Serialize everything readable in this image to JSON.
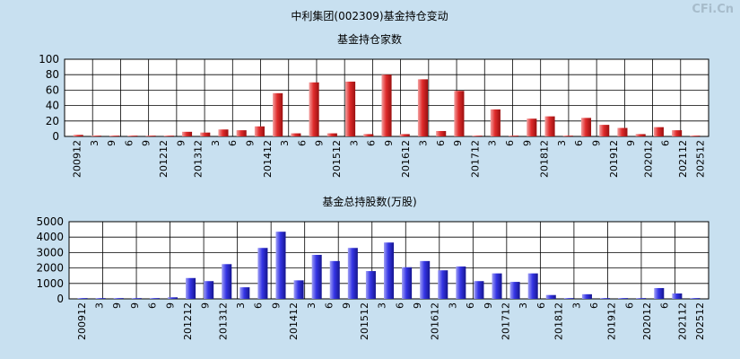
{
  "page_title": "中利集团(002309)基金持仓变动",
  "watermark": "CFi.Cn",
  "colors": {
    "bg": "#c8e0f0",
    "bar1": "#e03333",
    "bar2": "#3333dd",
    "grid": "#000000",
    "plot_bg": "#ffffff"
  },
  "chart_data": [
    {
      "type": "bar",
      "title": "基金持仓家数",
      "ylim": [
        0,
        100
      ],
      "yticks": [
        0,
        20,
        40,
        60,
        80,
        100
      ],
      "xtick_labels": [
        "200912",
        "3",
        "9",
        "6",
        "9",
        "201212",
        "9",
        "201312",
        "3",
        "6",
        "9",
        "201412",
        "3",
        "6",
        "9",
        "201512",
        "3",
        "6",
        "9",
        "201612",
        "3",
        "6",
        "9",
        "201712",
        "3",
        "6",
        "9",
        "201812",
        "3",
        "6",
        "9",
        "201912",
        "9",
        "202012",
        "6",
        "202112",
        "202512"
      ],
      "values": [
        2,
        1,
        1,
        1,
        1,
        1,
        6,
        5,
        9,
        8,
        13,
        56,
        4,
        70,
        4,
        71,
        3,
        80,
        3,
        74,
        7,
        59,
        1,
        35,
        1,
        23,
        26,
        1,
        24,
        15,
        11,
        3,
        12,
        8,
        1
      ]
    },
    {
      "type": "bar",
      "title": "基金总持股数(万股)",
      "ylim": [
        0,
        5000
      ],
      "yticks": [
        0,
        1000,
        2000,
        3000,
        4000,
        5000
      ],
      "xtick_labels": [
        "200912",
        "3",
        "9",
        "9",
        "6",
        "9",
        "201212",
        "9",
        "201312",
        "3",
        "6",
        "9",
        "201412",
        "3",
        "6",
        "9",
        "201512",
        "3",
        "6",
        "9",
        "201612",
        "3",
        "6",
        "9",
        "201712",
        "3",
        "6",
        "201812",
        "3",
        "6",
        "201912",
        "6",
        "202012",
        "6",
        "202112",
        "202512"
      ],
      "values": [
        50,
        50,
        50,
        50,
        50,
        100,
        1350,
        1150,
        2250,
        750,
        3300,
        4350,
        1200,
        2850,
        2450,
        3300,
        1800,
        3650,
        2050,
        2450,
        1850,
        2100,
        1150,
        1650,
        1100,
        1650,
        250,
        50,
        300,
        50,
        50,
        50,
        700,
        350,
        50
      ]
    }
  ]
}
